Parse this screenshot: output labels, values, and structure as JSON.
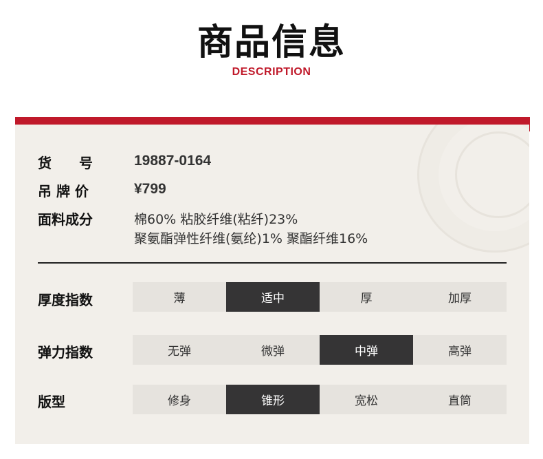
{
  "header": {
    "title": "商品信息",
    "subtitle": "DESCRIPTION"
  },
  "colors": {
    "accent": "#c0192a",
    "selected": "#353435",
    "option_bg": "#e6e3de",
    "panel_bg": "#f2efea"
  },
  "info": {
    "item_no": {
      "label": "货　　号",
      "value": "19887-0164"
    },
    "price": {
      "label": "吊 牌 价",
      "value": "¥799"
    },
    "fabric": {
      "label": "面料成分",
      "line1": "棉60% 粘胶纤维(粘纤)23%",
      "line2": "聚氨酯弹性纤维(氨纶)1% 聚酯纤维16%"
    }
  },
  "attributes": [
    {
      "label": "厚度指数",
      "options": [
        "薄",
        "适中",
        "厚",
        "加厚"
      ],
      "selected": 1
    },
    {
      "label": "弹力指数",
      "options": [
        "无弹",
        "微弹",
        "中弹",
        "高弹"
      ],
      "selected": 2
    },
    {
      "label": "版型",
      "options": [
        "修身",
        "锥形",
        "宽松",
        "直筒"
      ],
      "selected": 1
    }
  ]
}
